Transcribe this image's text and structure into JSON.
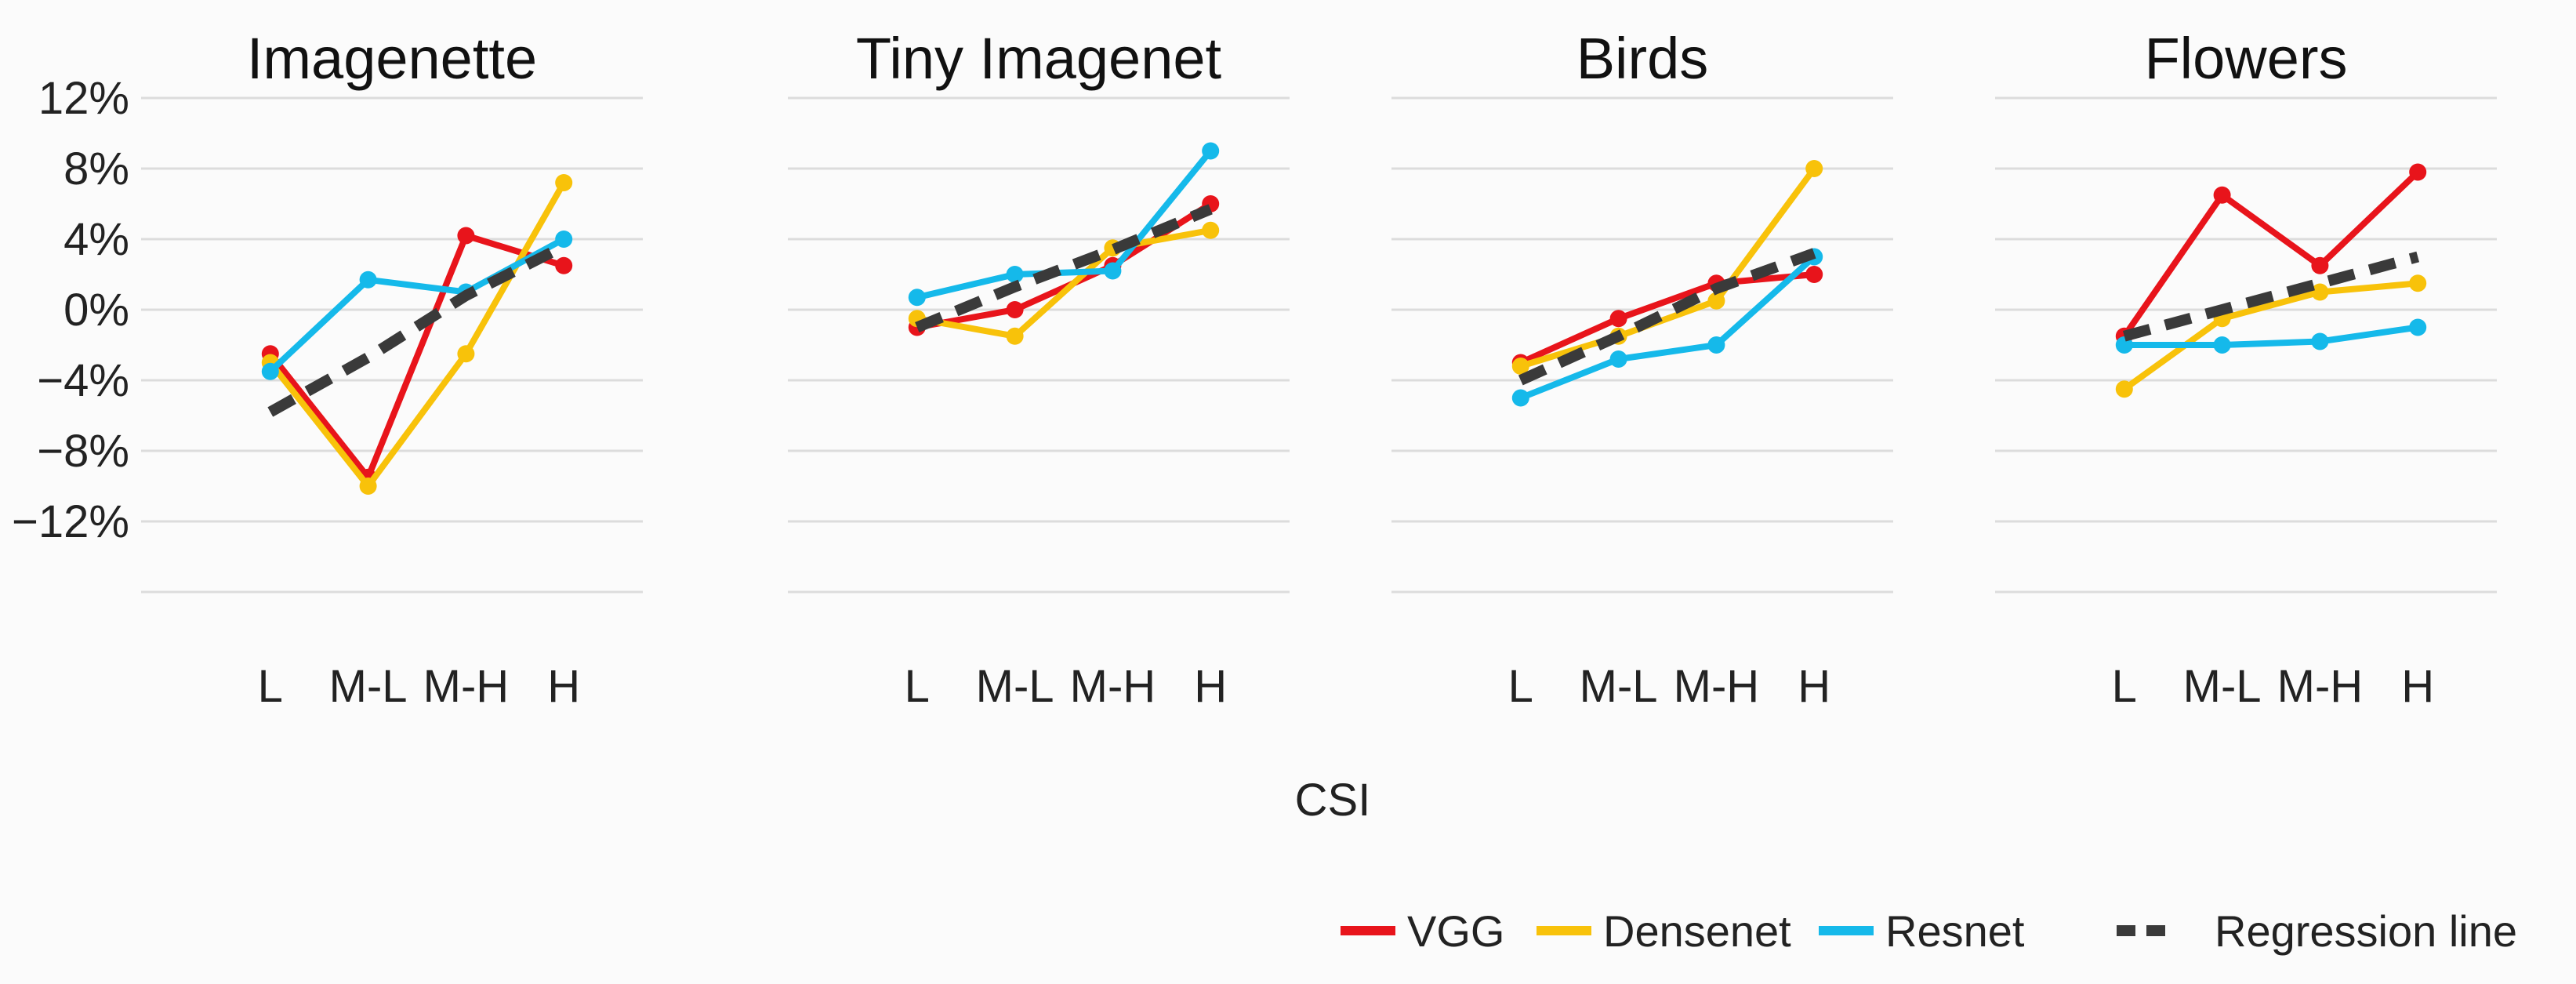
{
  "chart_data": {
    "type": "line",
    "xlabel": "CSI",
    "categories": [
      "L",
      "M-L",
      "M-H",
      "H"
    ],
    "ylim": [
      -18,
      14
    ],
    "yticks": [
      12,
      8,
      4,
      0,
      -4,
      -8,
      -12
    ],
    "ytick_labels": [
      "12%",
      "8%",
      "4%",
      "0%",
      "−4%",
      "−8%",
      "−12%"
    ],
    "colors": {
      "VGG": "#e8141b",
      "Densenet": "#f8c20a",
      "Resnet": "#15b9ea",
      "Regression line": "#3a3a3a"
    },
    "legend": [
      "VGG",
      "Densenet",
      "Resnet",
      "Regression line"
    ],
    "panels": [
      {
        "title": "Imagenette",
        "series": [
          {
            "name": "VGG",
            "values": [
              -2.5,
              -9.5,
              4.2,
              2.5
            ]
          },
          {
            "name": "Densenet",
            "values": [
              -3.0,
              -10.0,
              -2.5,
              7.2
            ]
          },
          {
            "name": "Resnet",
            "values": [
              -3.5,
              1.7,
              1.0,
              4.0
            ]
          },
          {
            "name": "Regression line",
            "values": [
              -5.8,
              -2.7,
              0.8,
              3.6
            ]
          }
        ]
      },
      {
        "title": "Tiny Imagenet",
        "series": [
          {
            "name": "VGG",
            "values": [
              -1.0,
              0.0,
              2.5,
              6.0
            ]
          },
          {
            "name": "Densenet",
            "values": [
              -0.5,
              -1.5,
              3.5,
              4.5
            ]
          },
          {
            "name": "Resnet",
            "values": [
              0.7,
              2.0,
              2.2,
              9.0
            ]
          },
          {
            "name": "Regression line",
            "values": [
              -1.0,
              1.3,
              3.4,
              5.7
            ]
          }
        ]
      },
      {
        "title": "Birds",
        "series": [
          {
            "name": "VGG",
            "values": [
              -3.0,
              -0.5,
              1.5,
              2.0
            ]
          },
          {
            "name": "Densenet",
            "values": [
              -3.2,
              -1.5,
              0.5,
              8.0
            ]
          },
          {
            "name": "Resnet",
            "values": [
              -5.0,
              -2.8,
              -2.0,
              3.0
            ]
          },
          {
            "name": "Regression line",
            "values": [
              -4.0,
              -1.5,
              1.2,
              3.2
            ]
          }
        ]
      },
      {
        "title": "Flowers",
        "series": [
          {
            "name": "VGG",
            "values": [
              -1.5,
              6.5,
              2.5,
              7.8
            ]
          },
          {
            "name": "Densenet",
            "values": [
              -4.5,
              -0.5,
              1.0,
              1.5
            ]
          },
          {
            "name": "Resnet",
            "values": [
              -2.0,
              -2.0,
              -1.8,
              -1.0
            ]
          },
          {
            "name": "Regression line",
            "values": [
              -1.5,
              0.0,
              1.5,
              3.0
            ]
          }
        ]
      }
    ]
  }
}
